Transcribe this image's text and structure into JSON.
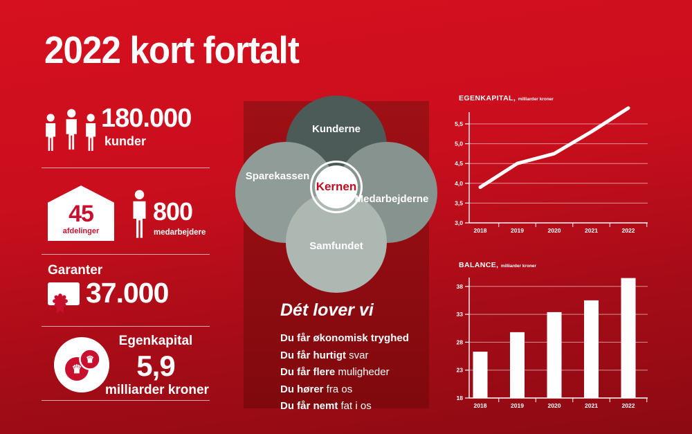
{
  "title": "2022 kort fortalt",
  "colors": {
    "background_top": "#d6101f",
    "background_bottom": "#8c0a13",
    "panel_red": "#9e1015",
    "brand_red": "#c8102e",
    "white": "#ffffff",
    "venn_top": "#4c5b57",
    "venn_left": "#909c97",
    "venn_right": "#87938f",
    "venn_bottom": "#aeb8b3"
  },
  "stats": {
    "customers": {
      "icon": "people-icon",
      "value": "180.000",
      "label": "kunder"
    },
    "branches": {
      "icon": "house-icon",
      "value": "45",
      "label": "afdelinger"
    },
    "employees": {
      "icon": "person-icon",
      "value": "800",
      "label": "medarbejdere"
    },
    "guarantors": {
      "icon": "certificate-icon",
      "heading": "Garanter",
      "value": "37.000"
    },
    "equity": {
      "icon": "coins-icon",
      "heading": "Egenkapital",
      "value": "5,9",
      "label": "milliarder kroner"
    }
  },
  "venn": {
    "top": "Kunderne",
    "left": "Sparekassen",
    "right": "Medarbejderne",
    "bottom": "Samfundet",
    "center": "Kernen"
  },
  "promises": {
    "heading": "Dét lover vi",
    "items": [
      {
        "bold": "Du får økonomisk tryghed",
        "rest": ""
      },
      {
        "bold": "Du får hurtigt",
        "rest": " svar"
      },
      {
        "bold": "Du får flere",
        "rest": " muligheder"
      },
      {
        "bold": "Du hører",
        "rest": " fra os"
      },
      {
        "bold": "Du får nemt",
        "rest": " fat i os"
      }
    ]
  },
  "chart_data": [
    {
      "type": "line",
      "title": "EGENKAPITAL,",
      "subtitle": "milliarder kroner",
      "x": [
        "2018",
        "2019",
        "2020",
        "2021",
        "2022"
      ],
      "values": [
        3.9,
        4.5,
        4.75,
        5.3,
        5.9
      ],
      "ylim": [
        3.0,
        6.1
      ],
      "yticks": [
        3.0,
        3.5,
        4.0,
        4.5,
        5.0,
        5.5
      ],
      "ytick_labels": [
        "3,0",
        "3,5",
        "4,0",
        "4,5",
        "5,0",
        "5,5"
      ],
      "grid": true,
      "legend": false,
      "line_color": "#ffffff"
    },
    {
      "type": "bar",
      "title": "BALANCE,",
      "subtitle": "milliarder kroner",
      "categories": [
        "2018",
        "2019",
        "2020",
        "2021",
        "2022"
      ],
      "values": [
        26.3,
        29.8,
        33.4,
        35.5,
        39.5
      ],
      "ylim": [
        18,
        40.5
      ],
      "yticks": [
        18,
        23,
        28,
        33,
        38
      ],
      "ytick_labels": [
        "18",
        "23",
        "28",
        "33",
        "38"
      ],
      "grid": true,
      "legend": false,
      "bar_color": "#ffffff"
    }
  ]
}
